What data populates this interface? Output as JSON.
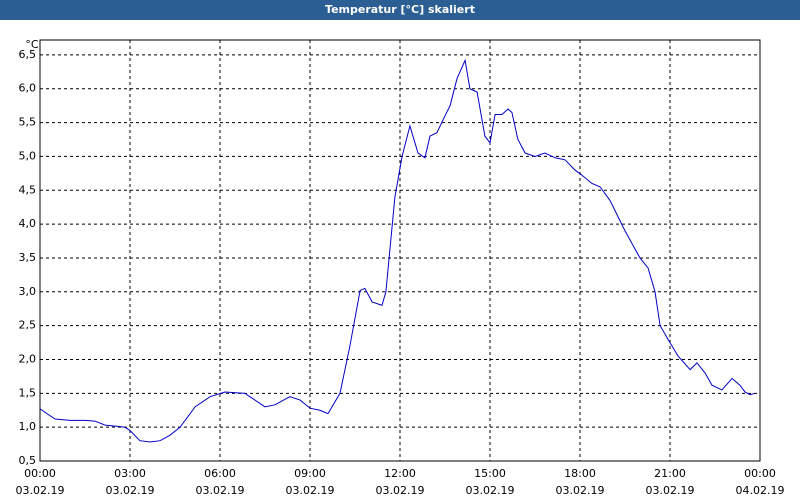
{
  "chart_data": {
    "type": "line",
    "title": "Temperatur [°C] skaliert",
    "y_label": "°C",
    "x": [
      0,
      0.5,
      1,
      1.5,
      1.83,
      2.17,
      2.83,
      3,
      3.33,
      3.67,
      4,
      4.33,
      4.67,
      5.17,
      5.67,
      6.17,
      6.83,
      7.5,
      7.83,
      8.33,
      8.67,
      9,
      9.33,
      9.6,
      10,
      10.33,
      10.67,
      10.83,
      11.07,
      11.4,
      11.53,
      11.83,
      12.07,
      12.33,
      12.6,
      12.83,
      13,
      13.23,
      13.5,
      13.67,
      13.9,
      14.17,
      14.33,
      14.57,
      14.83,
      15,
      15.17,
      15.4,
      15.6,
      15.73,
      15.93,
      16.17,
      16.5,
      16.83,
      17.17,
      17.5,
      17.83,
      18.07,
      18.4,
      18.67,
      19,
      19.5,
      20,
      20.27,
      20.5,
      20.67,
      20.93,
      21.27,
      21.67,
      21.9,
      22.17,
      22.4,
      22.73,
      23.07,
      23.33,
      23.5,
      23.67,
      23.83
    ],
    "series": [
      {
        "color": "#0000c8",
        "values": [
          1.27,
          1.12,
          1.1,
          1.1,
          1.09,
          1.03,
          1.0,
          0.95,
          0.8,
          0.78,
          0.8,
          0.88,
          1.0,
          1.3,
          1.45,
          1.52,
          1.5,
          1.3,
          1.33,
          1.45,
          1.4,
          1.28,
          1.25,
          1.2,
          1.5,
          2.2,
          3.02,
          3.05,
          2.85,
          2.8,
          3.0,
          4.4,
          5.0,
          5.45,
          5.05,
          4.98,
          5.3,
          5.35,
          5.6,
          5.75,
          6.15,
          6.42,
          6.0,
          5.95,
          5.3,
          5.2,
          5.62,
          5.62,
          5.7,
          5.65,
          5.25,
          5.05,
          5.0,
          5.05,
          4.98,
          4.95,
          4.8,
          4.72,
          4.6,
          4.55,
          4.35,
          3.9,
          3.5,
          3.35,
          3.0,
          2.5,
          2.3,
          2.05,
          1.85,
          1.95,
          1.8,
          1.62,
          1.55,
          1.72,
          1.62,
          1.52,
          1.48,
          1.5
        ]
      }
    ],
    "xlim": [
      0,
      24
    ],
    "xticks": [
      {
        "value": 0,
        "label": "00:00",
        "date": "03.02.19"
      },
      {
        "value": 3,
        "label": "03:00",
        "date": "03.02.19"
      },
      {
        "value": 6,
        "label": "06:00",
        "date": "03.02.19"
      },
      {
        "value": 9,
        "label": "09:00",
        "date": "03.02.19"
      },
      {
        "value": 12,
        "label": "12:00",
        "date": "03.02.19"
      },
      {
        "value": 15,
        "label": "15:00",
        "date": "03.02.19"
      },
      {
        "value": 18,
        "label": "18:00",
        "date": "03.02.19"
      },
      {
        "value": 21,
        "label": "21:00",
        "date": "03.02.19"
      },
      {
        "value": 24,
        "label": "00:00",
        "date": "04.02.19"
      }
    ],
    "ylim": [
      0.5,
      6.72
    ],
    "yticks": [
      {
        "value": 0.5,
        "label": "0,5"
      },
      {
        "value": 1,
        "label": "1,0"
      },
      {
        "value": 1.5,
        "label": "1,5"
      },
      {
        "value": 2,
        "label": "2,0"
      },
      {
        "value": 2.5,
        "label": "2,5"
      },
      {
        "value": 3,
        "label": "3,0"
      },
      {
        "value": 3.5,
        "label": "3,5"
      },
      {
        "value": 4,
        "label": "4,0"
      },
      {
        "value": 4.5,
        "label": "4,5"
      },
      {
        "value": 5,
        "label": "5,0"
      },
      {
        "value": 5.5,
        "label": "5,5"
      },
      {
        "value": 6,
        "label": "6,0"
      },
      {
        "value": 6.5,
        "label": "6,5"
      }
    ],
    "grid": true
  }
}
